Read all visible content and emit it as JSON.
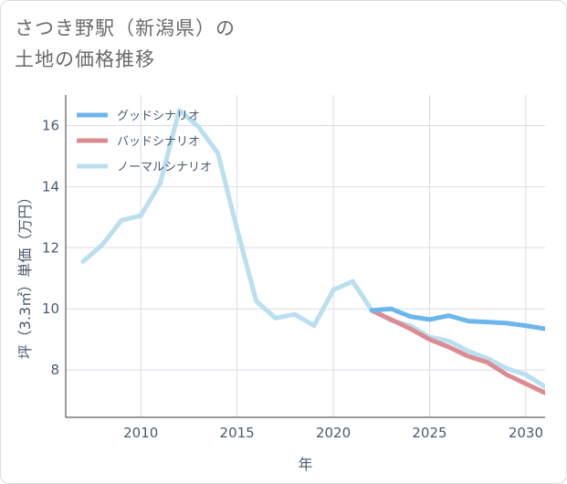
{
  "page": {
    "title_line1": "さつき野駅（新潟県）の",
    "title_line2": "土地の価格推移"
  },
  "chart_data": {
    "type": "line",
    "title": "さつき野駅（新潟県）の土地の価格推移",
    "xlabel": "年",
    "ylabel": "坪（3.3㎡）単価（万円）",
    "xlim": [
      2006.1,
      2031.0
    ],
    "ylim": [
      6.45,
      17.0
    ],
    "xticks": [
      2010,
      2015,
      2020,
      2025,
      2030
    ],
    "yticks": [
      8,
      10,
      12,
      14,
      16
    ],
    "grid": true,
    "legend_position": "top-left",
    "series": [
      {
        "name": "グッドシナリオ",
        "color": "#6cb6ec",
        "x": [
          2022,
          2023,
          2024,
          2025,
          2026,
          2027,
          2028,
          2029,
          2030,
          2031
        ],
        "values": [
          9.95,
          10.0,
          9.75,
          9.65,
          9.78,
          9.6,
          9.57,
          9.53,
          9.45,
          9.35
        ]
      },
      {
        "name": "バッドシナリオ",
        "color": "#dc8c91",
        "x": [
          2022,
          2023,
          2024,
          2025,
          2026,
          2027,
          2028,
          2029,
          2030,
          2031
        ],
        "values": [
          9.95,
          9.65,
          9.35,
          9.0,
          8.75,
          8.45,
          8.25,
          7.85,
          7.55,
          7.25
        ]
      },
      {
        "name": "ノーマルシナリオ",
        "color": "#b9dff0",
        "x": [
          2007,
          2008,
          2009,
          2010,
          2011,
          2012,
          2013,
          2014,
          2015,
          2016,
          2017,
          2018,
          2019,
          2020,
          2021,
          2022,
          2023,
          2024,
          2025,
          2026,
          2027,
          2028,
          2029,
          2030,
          2031
        ],
        "values": [
          11.55,
          12.1,
          12.9,
          13.05,
          14.1,
          16.5,
          15.95,
          15.1,
          12.6,
          10.25,
          9.7,
          9.82,
          9.45,
          10.62,
          10.9,
          9.95,
          9.62,
          9.45,
          9.08,
          8.95,
          8.62,
          8.38,
          8.05,
          7.85,
          7.45
        ]
      }
    ]
  }
}
